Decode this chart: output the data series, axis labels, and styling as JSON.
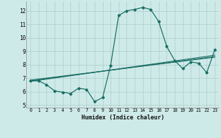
{
  "xlabel": "Humidex (Indice chaleur)",
  "bg_color": "#ceeae8",
  "grid_color": "#b0d0ce",
  "line_color": "#1a6e64",
  "xlim": [
    -0.5,
    23.5
  ],
  "ylim": [
    4.8,
    12.7
  ],
  "yticks": [
    5,
    6,
    7,
    8,
    9,
    10,
    11,
    12
  ],
  "xticks": [
    0,
    1,
    2,
    3,
    4,
    5,
    6,
    7,
    8,
    9,
    10,
    11,
    12,
    13,
    14,
    15,
    16,
    17,
    18,
    19,
    20,
    21,
    22,
    23
  ],
  "series1_x": [
    0,
    1,
    2,
    3,
    4,
    5,
    6,
    7,
    8,
    9,
    10,
    11,
    12,
    13,
    14,
    15,
    16,
    17,
    18,
    19,
    20,
    21,
    22,
    23
  ],
  "series1_y": [
    6.8,
    6.8,
    6.5,
    6.05,
    5.95,
    5.85,
    6.25,
    6.15,
    5.25,
    5.55,
    7.95,
    11.65,
    12.0,
    12.1,
    12.25,
    12.1,
    11.2,
    9.35,
    8.3,
    7.7,
    8.2,
    8.1,
    7.4,
    9.1
  ],
  "series2_x": [
    0,
    23
  ],
  "series2_y": [
    6.85,
    8.55
  ],
  "series3_x": [
    0,
    23
  ],
  "series3_y": [
    6.75,
    8.7
  ],
  "series4_x": [
    0,
    23
  ],
  "series4_y": [
    6.8,
    8.6
  ]
}
